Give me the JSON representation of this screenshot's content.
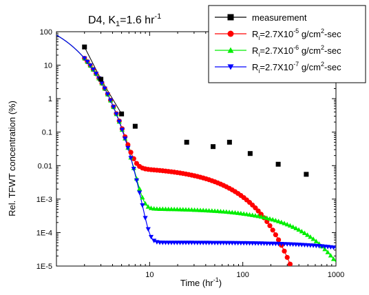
{
  "chart_data": {
    "type": "scatter",
    "title": {
      "main": "D4, K",
      "sub": "1",
      "rest": "=1.6 hr",
      "sup": "-1"
    },
    "xlabel": {
      "main": "Time (hr",
      "sup": "-1",
      "rest": ")"
    },
    "ylabel": "Rel. TFWT concentration (%)",
    "x_scale": "log",
    "y_scale": "log",
    "xlim": [
      1,
      1000
    ],
    "ylim": [
      1e-05,
      100
    ],
    "x_ticks": [
      {
        "value": 10,
        "label": "10"
      },
      {
        "value": 100,
        "label": "100"
      },
      {
        "value": 1000,
        "label": "1000"
      }
    ],
    "y_ticks": [
      {
        "value": 100,
        "label": "100"
      },
      {
        "value": 10,
        "label": "10"
      },
      {
        "value": 1,
        "label": "1"
      },
      {
        "value": 0.1,
        "label": "0.1"
      },
      {
        "value": 0.01,
        "label": "0.01"
      },
      {
        "value": 0.001,
        "label": "1E-3"
      },
      {
        "value": 0.0001,
        "label": "1E-4"
      },
      {
        "value": 1e-05,
        "label": "1E-5"
      }
    ],
    "grid": false,
    "legend_position": "top-right",
    "series": [
      {
        "name": {
          "pre": "measurement"
        },
        "color": "#000000",
        "marker": "square",
        "line": true,
        "x": [
          2,
          3,
          5,
          7,
          25,
          48,
          72,
          120,
          240,
          480
        ],
        "y": [
          35,
          3.8,
          0.35,
          0.15,
          0.05,
          0.037,
          0.05,
          0.023,
          0.011,
          0.0055
        ]
      },
      {
        "name": {
          "pre": "R",
          "sub": "i",
          "mid": "=2.7X10",
          "sup": "-5",
          "post": " g/cm",
          "sup2": "2",
          "post2": "-sec"
        },
        "color": "#ff0000",
        "marker": "circle",
        "model": {
          "y0": 16,
          "k": 1.6,
          "floor_at_1": 7.6e-07,
          "tail_tau": 48,
          "tail_t0": 10
        }
      },
      {
        "name": {
          "pre": "R",
          "sub": "i",
          "mid": "=2.7X10",
          "sup": "-6",
          "post": " g/cm",
          "sup2": "2",
          "post2": "-sec"
        },
        "color": "#00ee00",
        "marker": "triangle-up",
        "model": {
          "y0": 16,
          "k": 1.6,
          "floor_at_1": 5.15e-08,
          "tail_tau": 270,
          "tail_t0": 10
        }
      },
      {
        "name": {
          "pre": "R",
          "sub": "i",
          "mid": "=2.7X10",
          "sup": "-7",
          "post": " g/cm",
          "sup2": "2",
          "post2": "-sec"
        },
        "color": "#0000ff",
        "marker": "triangle-down",
        "model": {
          "y0": 16,
          "k": 1.6,
          "floor_at_1": 5e-09,
          "tail_tau": 2800,
          "tail_t0": 10
        }
      }
    ]
  }
}
